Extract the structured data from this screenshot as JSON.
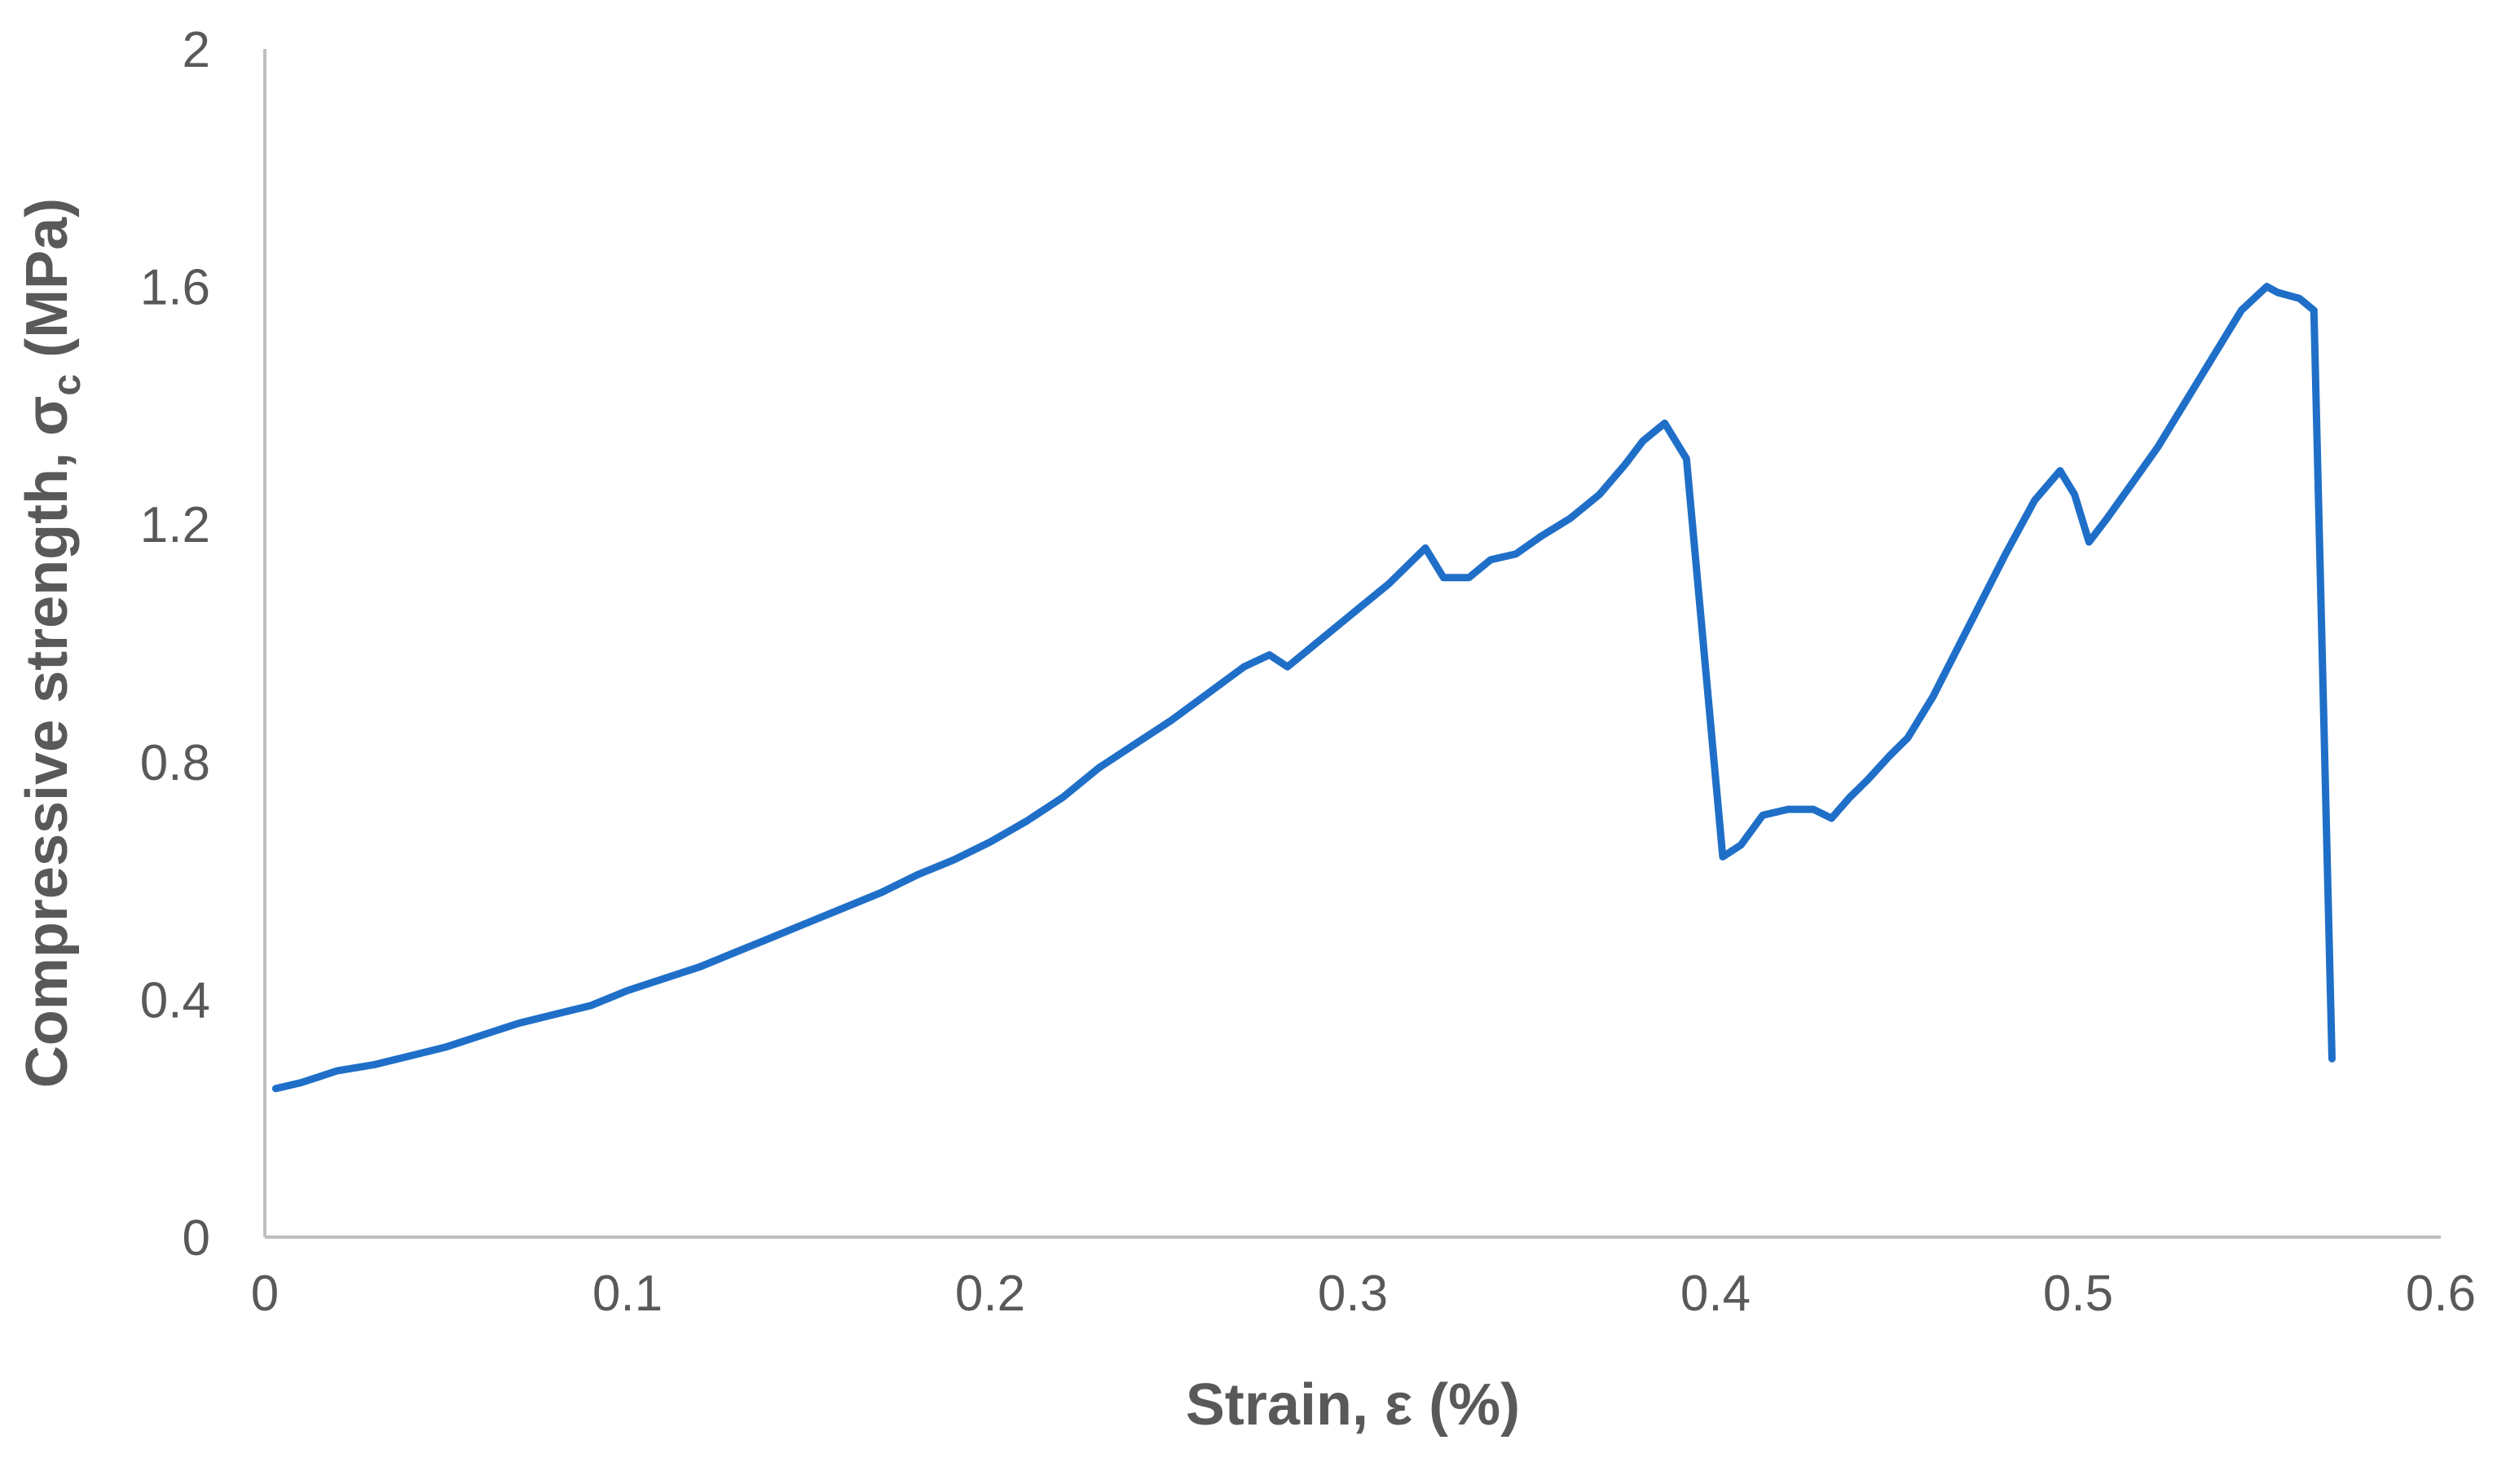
{
  "chart_data": {
    "type": "line",
    "xlabel": "Strain, ε (%)",
    "ylabel": {
      "main": "Compressive strength, σ",
      "subscript": "c",
      "unit": " (MPa)"
    },
    "xlim": [
      0,
      0.6
    ],
    "ylim": [
      0,
      2
    ],
    "xticks": [
      0,
      0.1,
      0.2,
      0.3,
      0.4,
      0.5,
      0.6
    ],
    "xtick_labels": [
      "0",
      "0.1",
      "0.2",
      "0.3",
      "0.4",
      "0.5",
      "0.6"
    ],
    "yticks": [
      0,
      0.4,
      0.8,
      1.2,
      1.6,
      2
    ],
    "ytick_labels": [
      "0",
      "0.4",
      "0.8",
      "1.2",
      "1.6",
      "2"
    ],
    "grid": false,
    "legend": "none",
    "series": [
      {
        "color": "#1f6fc8",
        "x": [
          0.003,
          0.01,
          0.02,
          0.03,
          0.04,
          0.05,
          0.06,
          0.07,
          0.08,
          0.09,
          0.1,
          0.11,
          0.12,
          0.13,
          0.14,
          0.15,
          0.16,
          0.17,
          0.18,
          0.19,
          0.2,
          0.21,
          0.22,
          0.23,
          0.24,
          0.25,
          0.26,
          0.27,
          0.277,
          0.282,
          0.29,
          0.3,
          0.31,
          0.32,
          0.325,
          0.332,
          0.338,
          0.345,
          0.352,
          0.36,
          0.368,
          0.375,
          0.38,
          0.386,
          0.392,
          0.402,
          0.407,
          0.413,
          0.42,
          0.427,
          0.432,
          0.437,
          0.442,
          0.448,
          0.453,
          0.46,
          0.47,
          0.48,
          0.488,
          0.495,
          0.499,
          0.503,
          0.508,
          0.515,
          0.522,
          0.53,
          0.538,
          0.545,
          0.552,
          0.555,
          0.561,
          0.565,
          0.57
        ],
        "y": [
          0.25,
          0.26,
          0.28,
          0.29,
          0.305,
          0.32,
          0.34,
          0.36,
          0.375,
          0.39,
          0.415,
          0.435,
          0.455,
          0.48,
          0.505,
          0.53,
          0.555,
          0.58,
          0.61,
          0.635,
          0.665,
          0.7,
          0.74,
          0.79,
          0.83,
          0.87,
          0.915,
          0.96,
          0.98,
          0.96,
          1.0,
          1.05,
          1.1,
          1.16,
          1.11,
          1.11,
          1.14,
          1.15,
          1.18,
          1.21,
          1.25,
          1.3,
          1.34,
          1.37,
          1.31,
          0.64,
          0.66,
          0.71,
          0.72,
          0.72,
          0.705,
          0.74,
          0.77,
          0.81,
          0.84,
          0.91,
          1.03,
          1.15,
          1.24,
          1.29,
          1.25,
          1.17,
          1.21,
          1.27,
          1.33,
          1.41,
          1.49,
          1.56,
          1.6,
          1.59,
          1.58,
          1.56,
          0.3
        ]
      }
    ]
  }
}
